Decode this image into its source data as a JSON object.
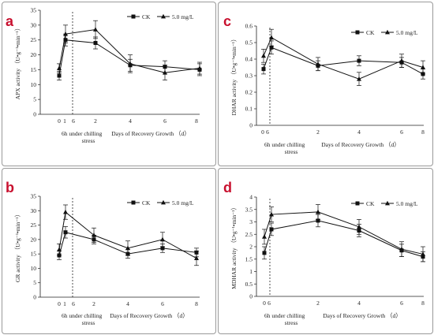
{
  "legend": {
    "ck": "CK",
    "treat": "5.0 mg/L"
  },
  "note": {
    "line1": "6h under chilling",
    "line2": "stress"
  },
  "xlabel": "Days of Recovery Growth （d）",
  "chart_data": [
    {
      "panel": "a",
      "type": "line",
      "ylabel": "APX activity （U•g⁻¹•min⁻¹）",
      "ylim": [
        0,
        35
      ],
      "yticks": [
        "0",
        "5",
        "10",
        "15",
        "20",
        "25",
        "30",
        "35"
      ],
      "xticks": [
        "0",
        "1",
        "6",
        "2",
        "4",
        "6",
        "8"
      ],
      "x": [
        0,
        0.25,
        2,
        4,
        6,
        8
      ],
      "series": [
        {
          "name": "CK",
          "marker": "square",
          "values": [
            13,
            25,
            24,
            16.5,
            16,
            15
          ],
          "err": [
            1.5,
            2,
            2,
            2,
            2,
            2
          ]
        },
        {
          "name": "5.0 mg/L",
          "marker": "triangle",
          "values": [
            15.5,
            27,
            28.5,
            17,
            14,
            15.5
          ],
          "err": [
            1.5,
            3,
            3,
            3,
            2.5,
            2
          ]
        }
      ]
    },
    {
      "panel": "c",
      "type": "line",
      "ylabel": "DHAR activity （U•g⁻¹•min⁻¹）",
      "ylim": [
        0,
        0.6
      ],
      "yticks": [
        "0",
        "0.1",
        "0.2",
        "0.3",
        "0.4",
        "0.5",
        "0.6"
      ],
      "xticks": [
        "0",
        "6",
        "2",
        "4",
        "6",
        "8"
      ],
      "x": [
        0,
        0.25,
        2,
        4,
        6,
        8
      ],
      "series": [
        {
          "name": "CK",
          "marker": "square",
          "values": [
            0.34,
            0.47,
            0.36,
            0.39,
            0.38,
            0.31
          ],
          "err": [
            0.03,
            0.04,
            0.03,
            0.03,
            0.03,
            0.03
          ]
        },
        {
          "name": "5.0 mg/L",
          "marker": "triangle",
          "values": [
            0.42,
            0.53,
            0.37,
            0.28,
            0.39,
            0.35
          ],
          "err": [
            0.04,
            0.05,
            0.04,
            0.04,
            0.04,
            0.04
          ]
        }
      ]
    },
    {
      "panel": "b",
      "type": "line",
      "ylabel": "GR activity （U•g⁻¹•min⁻¹）",
      "ylim": [
        0,
        35
      ],
      "yticks": [
        "0",
        "5",
        "10",
        "15",
        "20",
        "25",
        "30",
        "35"
      ],
      "xticks": [
        "0",
        "1",
        "6",
        "2",
        "4",
        "6",
        "8"
      ],
      "x": [
        0,
        0.25,
        2,
        4,
        6,
        8
      ],
      "series": [
        {
          "name": "CK",
          "marker": "square",
          "values": [
            14.5,
            22.5,
            20,
            15,
            17,
            15.5
          ],
          "err": [
            1.5,
            2,
            1.5,
            1.5,
            1.5,
            1.5
          ]
        },
        {
          "name": "5.0 mg/L",
          "marker": "triangle",
          "values": [
            16.5,
            29.5,
            21.5,
            17,
            20,
            13.5
          ],
          "err": [
            2,
            2.5,
            2.5,
            2.5,
            2.5,
            2.5
          ]
        }
      ]
    },
    {
      "panel": "d",
      "type": "line",
      "ylabel": "MDHAR activity （U•g⁻¹•min⁻¹）",
      "ylim": [
        0,
        4
      ],
      "yticks": [
        "0",
        "0.5",
        "1",
        "1.5",
        "2",
        "2.5",
        "3",
        "3.5",
        "4"
      ],
      "xticks": [
        "0",
        "6",
        "2",
        "4",
        "6",
        "8"
      ],
      "x": [
        0,
        0.25,
        2,
        4,
        6,
        8
      ],
      "series": [
        {
          "name": "CK",
          "marker": "square",
          "values": [
            1.75,
            2.7,
            3.05,
            2.65,
            1.85,
            1.6
          ],
          "err": [
            0.25,
            0.25,
            0.25,
            0.25,
            0.25,
            0.2
          ]
        },
        {
          "name": "5.0 mg/L",
          "marker": "triangle",
          "values": [
            2.4,
            3.3,
            3.4,
            2.8,
            1.9,
            1.7
          ],
          "err": [
            0.3,
            0.3,
            0.3,
            0.3,
            0.3,
            0.3
          ]
        }
      ]
    }
  ]
}
